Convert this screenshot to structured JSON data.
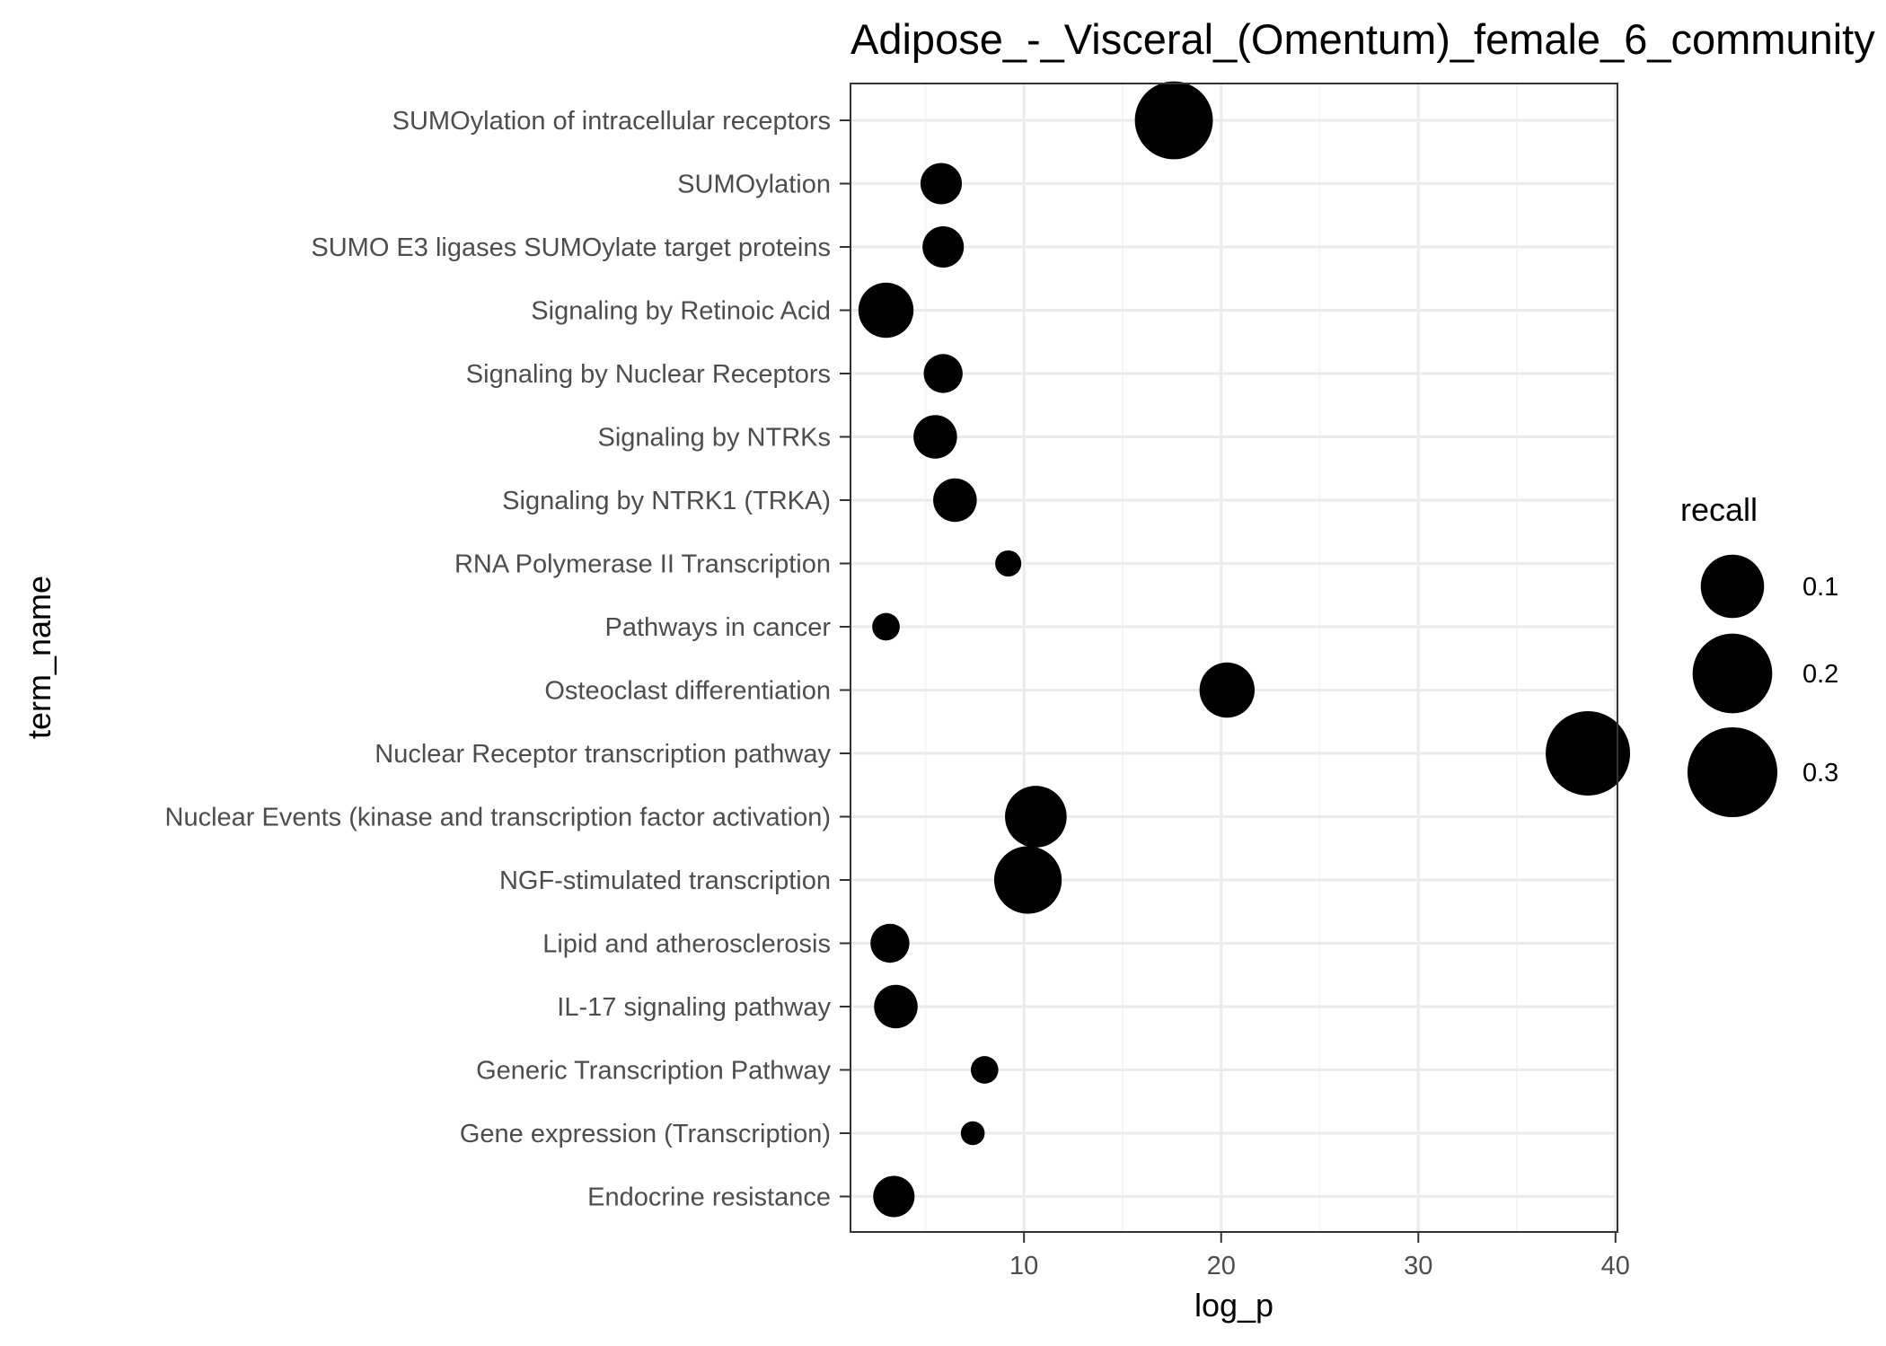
{
  "chart_data": {
    "type": "scatter",
    "title": "Adipose_-_Visceral_(Omentum)_female_6_community",
    "xlabel": "log_p",
    "ylabel": "term_name",
    "xlim": [
      1.2,
      40.1
    ],
    "xticks": [
      10,
      20,
      30,
      40
    ],
    "grid": true,
    "legend_position": "right",
    "size_legend": {
      "title": "recall",
      "entries": [
        {
          "label": "0.1",
          "value": 0.1
        },
        {
          "label": "0.2",
          "value": 0.2
        },
        {
          "label": "0.3",
          "value": 0.3
        }
      ]
    },
    "colors": {
      "point": "#000000",
      "panel_background": "#ffffff",
      "grid_major": "#ebebeb",
      "grid_minor": "#f5f5f5",
      "panel_border": "#333333",
      "tick_label": "#4d4d4d"
    },
    "categories": [
      "SUMOylation of intracellular receptors",
      "SUMOylation",
      "SUMO E3 ligases SUMOylate target proteins",
      "Signaling by Retinoic Acid",
      "Signaling by Nuclear Receptors",
      "Signaling by NTRKs",
      "Signaling by NTRK1 (TRKA)",
      "RNA Polymerase II Transcription",
      "Pathways in cancer",
      "Osteoclast differentiation",
      "Nuclear Receptor transcription pathway",
      "Nuclear Events (kinase and transcription factor activation)",
      "NGF-stimulated transcription",
      "Lipid and atherosclerosis",
      "IL-17 signaling pathway",
      "Generic Transcription Pathway",
      "Gene expression (Transcription)",
      "Endocrine resistance"
    ],
    "points": [
      {
        "term_name": "SUMOylation of intracellular receptors",
        "log_p": 17.6,
        "recall": 0.32
      },
      {
        "term_name": "SUMOylation",
        "log_p": 5.8,
        "recall": 0.09
      },
      {
        "term_name": "SUMO E3 ligases SUMOylate target proteins",
        "log_p": 5.9,
        "recall": 0.09
      },
      {
        "term_name": "Signaling by Retinoic Acid",
        "log_p": 3.0,
        "recall": 0.16
      },
      {
        "term_name": "Signaling by Nuclear Receptors",
        "log_p": 5.9,
        "recall": 0.08
      },
      {
        "term_name": "Signaling by NTRKs",
        "log_p": 5.5,
        "recall": 0.1
      },
      {
        "term_name": "Signaling by NTRK1 (TRKA)",
        "log_p": 6.5,
        "recall": 0.1
      },
      {
        "term_name": "RNA Polymerase II Transcription",
        "log_p": 9.2,
        "recall": 0.036
      },
      {
        "term_name": "Pathways in cancer",
        "log_p": 3.0,
        "recall": 0.04
      },
      {
        "term_name": "Osteoclast differentiation",
        "log_p": 20.3,
        "recall": 0.16
      },
      {
        "term_name": "Nuclear Receptor transcription pathway",
        "log_p": 38.6,
        "recall": 0.375
      },
      {
        "term_name": "Nuclear Events (kinase and transcription factor activation)",
        "log_p": 10.6,
        "recall": 0.2
      },
      {
        "term_name": "NGF-stimulated transcription",
        "log_p": 10.2,
        "recall": 0.24
      },
      {
        "term_name": "Lipid and atherosclerosis",
        "log_p": 3.2,
        "recall": 0.08
      },
      {
        "term_name": "IL-17 signaling pathway",
        "log_p": 3.5,
        "recall": 0.1
      },
      {
        "term_name": "Generic Transcription Pathway",
        "log_p": 8.0,
        "recall": 0.04
      },
      {
        "term_name": "Gene expression (Transcription)",
        "log_p": 7.4,
        "recall": 0.03
      },
      {
        "term_name": "Endocrine resistance",
        "log_p": 3.4,
        "recall": 0.09
      }
    ]
  }
}
